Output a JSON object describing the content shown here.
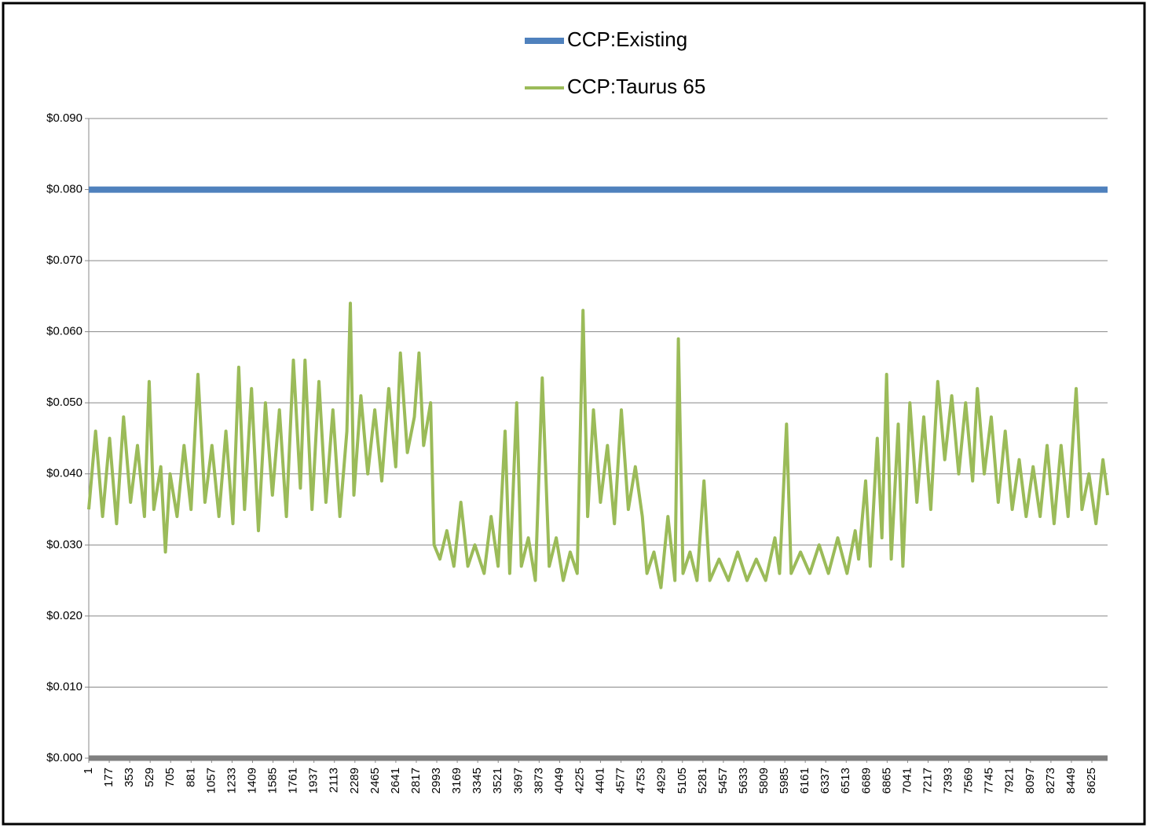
{
  "chart_data": {
    "type": "line",
    "series": [
      {
        "name": "CCP:Existing",
        "color": "#4f81bd",
        "x": [
          1,
          8760
        ],
        "values": [
          0.08,
          0.08
        ]
      },
      {
        "name": "CCP:Taurus 65",
        "color": "#9bbb59",
        "x": [
          1,
          60,
          120,
          180,
          240,
          300,
          360,
          420,
          480,
          520,
          560,
          620,
          660,
          700,
          760,
          820,
          880,
          940,
          1000,
          1060,
          1120,
          1180,
          1240,
          1290,
          1340,
          1400,
          1460,
          1520,
          1580,
          1640,
          1700,
          1760,
          1820,
          1860,
          1920,
          1980,
          2040,
          2100,
          2160,
          2220,
          2250,
          2280,
          2340,
          2400,
          2460,
          2520,
          2580,
          2640,
          2680,
          2740,
          2800,
          2840,
          2880,
          2940,
          2970,
          3020,
          3080,
          3140,
          3200,
          3260,
          3320,
          3400,
          3460,
          3520,
          3580,
          3620,
          3680,
          3720,
          3780,
          3840,
          3900,
          3960,
          4020,
          4080,
          4140,
          4200,
          4250,
          4290,
          4340,
          4400,
          4460,
          4520,
          4580,
          4640,
          4700,
          4760,
          4800,
          4860,
          4920,
          4980,
          5040,
          5070,
          5110,
          5170,
          5230,
          5290,
          5340,
          5420,
          5500,
          5580,
          5660,
          5740,
          5820,
          5900,
          5940,
          6000,
          6040,
          6120,
          6200,
          6280,
          6360,
          6440,
          6520,
          6590,
          6620,
          6680,
          6720,
          6780,
          6820,
          6860,
          6900,
          6960,
          7000,
          7060,
          7120,
          7180,
          7240,
          7300,
          7360,
          7420,
          7480,
          7540,
          7600,
          7640,
          7700,
          7760,
          7820,
          7880,
          7940,
          8000,
          8060,
          8120,
          8180,
          8240,
          8300,
          8360,
          8420,
          8490,
          8540,
          8600,
          8660,
          8720,
          8760
        ],
        "values": [
          0.035,
          0.046,
          0.034,
          0.045,
          0.033,
          0.048,
          0.036,
          0.044,
          0.034,
          0.053,
          0.035,
          0.041,
          0.029,
          0.04,
          0.034,
          0.044,
          0.035,
          0.054,
          0.036,
          0.044,
          0.034,
          0.046,
          0.033,
          0.055,
          0.035,
          0.052,
          0.032,
          0.05,
          0.037,
          0.049,
          0.034,
          0.056,
          0.038,
          0.056,
          0.035,
          0.053,
          0.036,
          0.049,
          0.034,
          0.046,
          0.064,
          0.037,
          0.051,
          0.04,
          0.049,
          0.039,
          0.052,
          0.041,
          0.057,
          0.043,
          0.048,
          0.057,
          0.044,
          0.05,
          0.03,
          0.028,
          0.032,
          0.027,
          0.036,
          0.027,
          0.03,
          0.026,
          0.034,
          0.027,
          0.046,
          0.026,
          0.05,
          0.027,
          0.031,
          0.025,
          0.0535,
          0.027,
          0.031,
          0.025,
          0.029,
          0.026,
          0.063,
          0.034,
          0.049,
          0.036,
          0.044,
          0.033,
          0.049,
          0.035,
          0.041,
          0.034,
          0.026,
          0.029,
          0.024,
          0.034,
          0.025,
          0.059,
          0.026,
          0.029,
          0.025,
          0.039,
          0.025,
          0.028,
          0.025,
          0.029,
          0.025,
          0.028,
          0.025,
          0.031,
          0.026,
          0.047,
          0.026,
          0.029,
          0.026,
          0.03,
          0.026,
          0.031,
          0.026,
          0.032,
          0.028,
          0.039,
          0.027,
          0.045,
          0.031,
          0.054,
          0.028,
          0.047,
          0.027,
          0.05,
          0.036,
          0.048,
          0.035,
          0.053,
          0.042,
          0.051,
          0.04,
          0.05,
          0.039,
          0.052,
          0.04,
          0.048,
          0.036,
          0.046,
          0.035,
          0.042,
          0.034,
          0.041,
          0.034,
          0.044,
          0.033,
          0.044,
          0.034,
          0.052,
          0.035,
          0.04,
          0.033,
          0.042,
          0.037
        ]
      }
    ],
    "xlim": [
      1,
      8760
    ],
    "xticks": [
      1,
      177,
      353,
      529,
      705,
      881,
      1057,
      1233,
      1409,
      1585,
      1761,
      1937,
      2113,
      2289,
      2465,
      2641,
      2817,
      2993,
      3169,
      3345,
      3521,
      3697,
      3873,
      4049,
      4225,
      4401,
      4577,
      4753,
      4929,
      5105,
      5281,
      5457,
      5633,
      5809,
      5985,
      6161,
      6337,
      6513,
      6689,
      6865,
      7041,
      7217,
      7393,
      7569,
      7745,
      7921,
      8097,
      8273,
      8449,
      8625
    ],
    "ylim": [
      0,
      0.09
    ],
    "yticks": [
      {
        "value": 0,
        "label": "$0.000"
      },
      {
        "value": 0.01,
        "label": "$0.010"
      },
      {
        "value": 0.02,
        "label": "$0.020"
      },
      {
        "value": 0.03,
        "label": "$0.030"
      },
      {
        "value": 0.04,
        "label": "$0.040"
      },
      {
        "value": 0.05,
        "label": "$0.050"
      },
      {
        "value": 0.06,
        "label": "$0.060"
      },
      {
        "value": 0.07,
        "label": "$0.070"
      },
      {
        "value": 0.08,
        "label": "$0.080"
      },
      {
        "value": 0.09,
        "label": "$0.090"
      }
    ],
    "grid": true,
    "legend": "top"
  }
}
